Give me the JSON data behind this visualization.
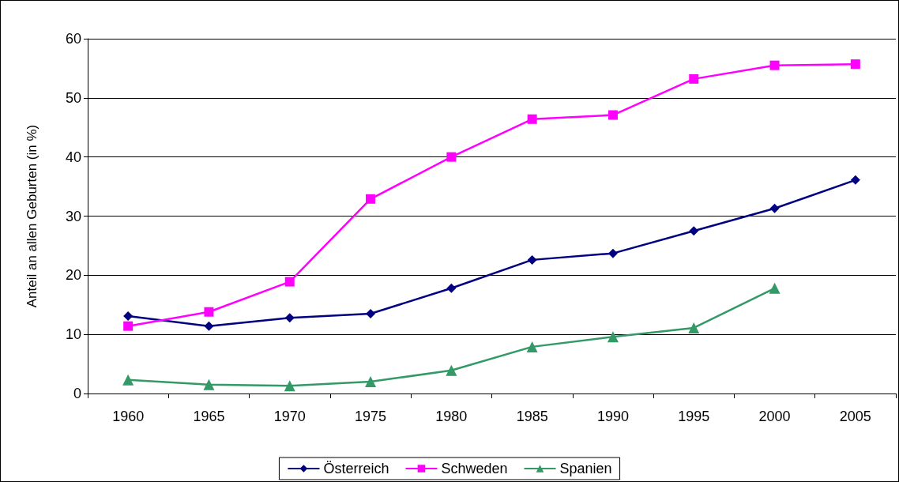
{
  "chart_data": {
    "type": "line",
    "ylabel": "Anteil an allen Geburten (in %)",
    "categories": [
      "1960",
      "1965",
      "1970",
      "1975",
      "1980",
      "1985",
      "1990",
      "1995",
      "2000",
      "2005"
    ],
    "series": [
      {
        "name": "Österreich",
        "color": "#000080",
        "marker": "diamond",
        "values": [
          13.1,
          11.4,
          12.8,
          13.5,
          17.8,
          22.6,
          23.7,
          27.5,
          31.3,
          36.1
        ]
      },
      {
        "name": "Schweden",
        "color": "#ff00ff",
        "marker": "square",
        "values": [
          11.4,
          13.8,
          18.9,
          32.9,
          40.0,
          46.4,
          47.1,
          53.2,
          55.5,
          55.7
        ]
      },
      {
        "name": "Spanien",
        "color": "#339966",
        "marker": "triangle",
        "values": [
          2.3,
          1.5,
          1.3,
          2.0,
          3.9,
          7.9,
          9.6,
          11.1,
          17.8,
          null
        ]
      }
    ],
    "ylim": [
      0,
      60
    ],
    "yticks": [
      0,
      10,
      20,
      30,
      40,
      50,
      60
    ],
    "grid": "y",
    "legend": "bottom",
    "line_style": "solid"
  }
}
